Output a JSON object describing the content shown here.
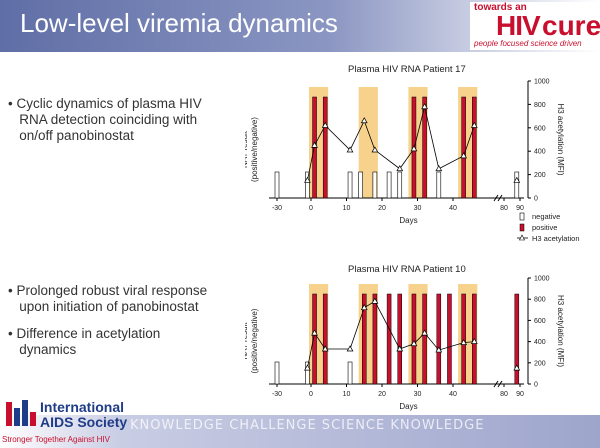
{
  "slide": {
    "title": "Low-level viremia dynamics"
  },
  "logo_cure": {
    "top": "towards an",
    "hiv": "HIV",
    "cure": "cure",
    "tagline": "people focused science driven"
  },
  "bullets_top": [
    "Cyclic dynamics of plasma HIV",
    "RNA detection coinciding with",
    "on/off panobinostat"
  ],
  "bullets_bottom": [
    "Prolonged robust viral response",
    "upon initiation of panobinostat",
    "Difference in acetylation",
    "dynamics"
  ],
  "footer": {
    "name_line1": "International",
    "name_line2": "AIDS Society",
    "tagline": "Stronger Together Against HIV",
    "band_text": "KNOWLEDGE CHALLENGE SCIENCE KNOWLEDGE"
  },
  "colors": {
    "title_bar": "#5f6ea6",
    "positive": "#c8102e",
    "shade": "#f7d28c",
    "brand_red": "#c8102e",
    "ias_blue": "#1f3c88"
  },
  "chart_data": [
    {
      "type": "bar",
      "title": "Plasma HIV RNA Patient 17",
      "ylabel": "NAT result (positive/negative)",
      "y2label": "H3 acetylation (MFI)",
      "xlabel": "Days",
      "x_ticks": [
        "-30",
        "0",
        "10",
        "20",
        "30",
        "40",
        "80",
        "90"
      ],
      "y2_ticks": [
        "0",
        "200",
        "400",
        "600",
        "800",
        "1000"
      ],
      "y2lim": [
        0,
        1000
      ],
      "shaded_days": [
        [
          0,
          4
        ],
        [
          14,
          18
        ],
        [
          28,
          32
        ],
        [
          42,
          46
        ]
      ],
      "nat": [
        {
          "day": -30,
          "result": "negative"
        },
        {
          "day": -1,
          "result": "negative"
        },
        {
          "day": 1,
          "result": "positive"
        },
        {
          "day": 4,
          "result": "positive"
        },
        {
          "day": 11,
          "result": "negative"
        },
        {
          "day": 14,
          "result": "negative"
        },
        {
          "day": 18,
          "result": "negative"
        },
        {
          "day": 22,
          "result": "negative"
        },
        {
          "day": 25,
          "result": "negative"
        },
        {
          "day": 29,
          "result": "positive"
        },
        {
          "day": 32,
          "result": "positive"
        },
        {
          "day": 36,
          "result": "negative"
        },
        {
          "day": 43,
          "result": "positive"
        },
        {
          "day": 46,
          "result": "positive"
        },
        {
          "day": 88,
          "result": "negative"
        }
      ],
      "acetylation": [
        {
          "day": -1,
          "value": 150
        },
        {
          "day": 1,
          "value": 450
        },
        {
          "day": 4,
          "value": 620
        },
        {
          "day": 11,
          "value": 410
        },
        {
          "day": 15,
          "value": 660
        },
        {
          "day": 18,
          "value": 410
        },
        {
          "day": 25,
          "value": 250
        },
        {
          "day": 29,
          "value": 420
        },
        {
          "day": 32,
          "value": 780
        },
        {
          "day": 36,
          "value": 250
        },
        {
          "day": 43,
          "value": 360
        },
        {
          "day": 46,
          "value": 620
        },
        {
          "day": 88,
          "value": 150
        }
      ],
      "legend": [
        "negative",
        "positive",
        "H3 acetylation"
      ]
    },
    {
      "type": "bar",
      "title": "Plasma HIV RNA Patient 10",
      "ylabel": "NAT result (positive/negative)",
      "y2label": "H3 acetylation (MFI)",
      "xlabel": "Days",
      "x_ticks": [
        "-30",
        "0",
        "10",
        "20",
        "30",
        "40",
        "80",
        "90"
      ],
      "y2_ticks": [
        "0",
        "200",
        "400",
        "600",
        "800",
        "1000"
      ],
      "y2lim": [
        0,
        1000
      ],
      "shaded_days": [
        [
          0,
          4
        ],
        [
          14,
          18
        ],
        [
          28,
          32
        ],
        [
          42,
          46
        ]
      ],
      "nat": [
        {
          "day": -30,
          "result": "negative"
        },
        {
          "day": -1,
          "result": "negative"
        },
        {
          "day": 1,
          "result": "positive"
        },
        {
          "day": 4,
          "result": "positive"
        },
        {
          "day": 11,
          "result": "negative"
        },
        {
          "day": 15,
          "result": "positive"
        },
        {
          "day": 18,
          "result": "positive"
        },
        {
          "day": 22,
          "result": "positive"
        },
        {
          "day": 25,
          "result": "positive"
        },
        {
          "day": 29,
          "result": "positive"
        },
        {
          "day": 32,
          "result": "positive"
        },
        {
          "day": 36,
          "result": "positive"
        },
        {
          "day": 39,
          "result": "positive"
        },
        {
          "day": 43,
          "result": "positive"
        },
        {
          "day": 46,
          "result": "positive"
        },
        {
          "day": 88,
          "result": "positive"
        }
      ],
      "acetylation": [
        {
          "day": -1,
          "value": 150
        },
        {
          "day": 1,
          "value": 480
        },
        {
          "day": 4,
          "value": 330
        },
        {
          "day": 11,
          "value": 330
        },
        {
          "day": 15,
          "value": 720
        },
        {
          "day": 18,
          "value": 780
        },
        {
          "day": 25,
          "value": 330
        },
        {
          "day": 29,
          "value": 380
        },
        {
          "day": 32,
          "value": 480
        },
        {
          "day": 36,
          "value": 320
        },
        {
          "day": 43,
          "value": 390
        },
        {
          "day": 46,
          "value": 400
        },
        {
          "day": 88,
          "value": 150
        }
      ],
      "legend": []
    }
  ]
}
